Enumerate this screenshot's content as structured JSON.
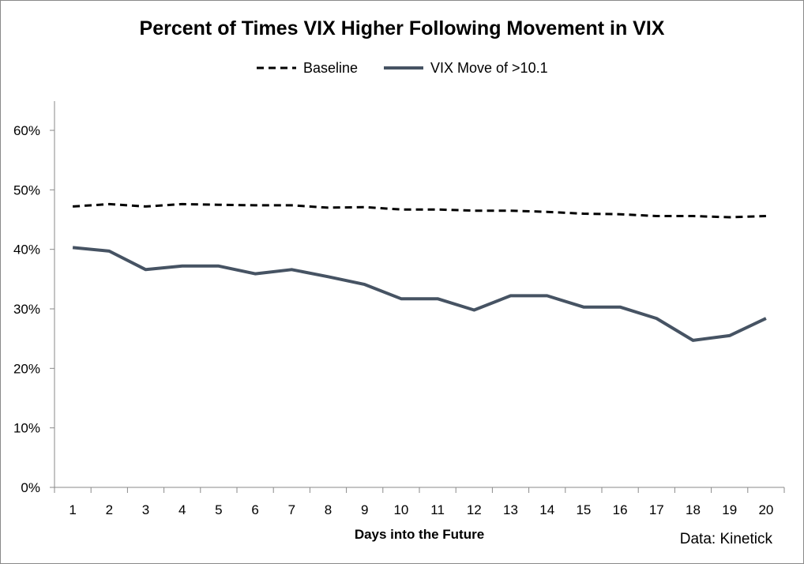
{
  "chart_data": {
    "type": "line",
    "title": "Percent of Times VIX Higher Following Movement in VIX",
    "xlabel": "Days into the Future",
    "ylabel": "",
    "x": [
      1,
      2,
      3,
      4,
      5,
      6,
      7,
      8,
      9,
      10,
      11,
      12,
      13,
      14,
      15,
      16,
      17,
      18,
      19,
      20
    ],
    "ylim": [
      0,
      0.6
    ],
    "yticks": [
      "0%",
      "10%",
      "20%",
      "30%",
      "40%",
      "50%",
      "60%"
    ],
    "series": [
      {
        "name": "Baseline",
        "style": "dashed",
        "color": "#000000",
        "values": [
          0.472,
          0.476,
          0.472,
          0.476,
          0.475,
          0.474,
          0.474,
          0.47,
          0.471,
          0.467,
          0.467,
          0.465,
          0.465,
          0.463,
          0.46,
          0.459,
          0.456,
          0.456,
          0.454,
          0.456
        ]
      },
      {
        "name": "VIX Move of >10.1",
        "style": "solid",
        "color": "#465363",
        "values": [
          0.403,
          0.397,
          0.366,
          0.372,
          0.372,
          0.359,
          0.366,
          0.354,
          0.341,
          0.317,
          0.317,
          0.298,
          0.322,
          0.322,
          0.303,
          0.303,
          0.284,
          0.247,
          0.255,
          0.284
        ]
      }
    ],
    "grid": false,
    "legend_position": "top"
  },
  "source_note": "Data: Kinetick"
}
